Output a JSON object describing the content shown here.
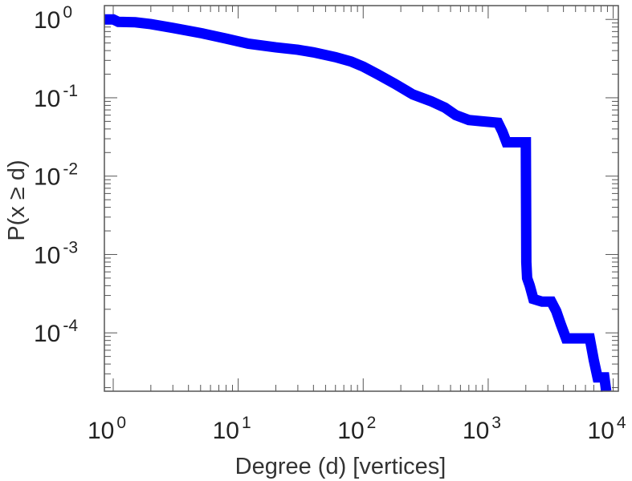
{
  "chart_data": {
    "type": "line",
    "xlabel": "Degree (d) [vertices]",
    "ylabel": "P(x ≥ d)",
    "xscale": "log",
    "yscale": "log",
    "xlim": [
      0.85,
      11000
    ],
    "ylim": [
      1.8e-05,
      1.5
    ],
    "x_ticks": [
      {
        "base": "10",
        "exp": "0",
        "value": 1
      },
      {
        "base": "10",
        "exp": "1",
        "value": 10
      },
      {
        "base": "10",
        "exp": "2",
        "value": 100
      },
      {
        "base": "10",
        "exp": "3",
        "value": 1000
      },
      {
        "base": "10",
        "exp": "4",
        "value": 10000
      }
    ],
    "y_ticks": [
      {
        "base": "10",
        "exp": "0",
        "value": 1
      },
      {
        "base": "10",
        "exp": "-1",
        "value": 0.1
      },
      {
        "base": "10",
        "exp": "-2",
        "value": 0.01
      },
      {
        "base": "10",
        "exp": "-3",
        "value": 0.001
      },
      {
        "base": "10",
        "exp": "-4",
        "value": 0.0001
      }
    ],
    "grid": false,
    "series_color": "#0000ff",
    "series": [
      {
        "points": [
          [
            0.85,
            1.0
          ],
          [
            1,
            1.0
          ],
          [
            1.1,
            0.93
          ],
          [
            1.5,
            0.92
          ],
          [
            2,
            0.87
          ],
          [
            3,
            0.78
          ],
          [
            5,
            0.67
          ],
          [
            8,
            0.57
          ],
          [
            12,
            0.49
          ],
          [
            20,
            0.44
          ],
          [
            30,
            0.41
          ],
          [
            40,
            0.38
          ],
          [
            60,
            0.33
          ],
          [
            80,
            0.29
          ],
          [
            100,
            0.25
          ],
          [
            130,
            0.2
          ],
          [
            180,
            0.15
          ],
          [
            250,
            0.11
          ],
          [
            350,
            0.09
          ],
          [
            450,
            0.075
          ],
          [
            550,
            0.06
          ],
          [
            700,
            0.052
          ],
          [
            900,
            0.05
          ],
          [
            1200,
            0.048
          ],
          [
            1300,
            0.037
          ],
          [
            1400,
            0.027
          ],
          [
            1700,
            0.027
          ],
          [
            2000,
            0.027
          ],
          [
            2020,
            0.0008
          ],
          [
            2050,
            0.0005
          ],
          [
            2150,
            0.0004
          ],
          [
            2300,
            0.00027
          ],
          [
            2700,
            0.00025
          ],
          [
            3200,
            0.00025
          ],
          [
            3500,
            0.00019
          ],
          [
            3800,
            0.00013
          ],
          [
            4200,
            8.5e-05
          ],
          [
            5000,
            8.5e-05
          ],
          [
            6500,
            8.5e-05
          ],
          [
            7000,
            4.5e-05
          ],
          [
            7500,
            2.7e-05
          ],
          [
            8500,
            2.7e-05
          ],
          [
            8800,
            1.8e-05
          ]
        ]
      }
    ]
  }
}
